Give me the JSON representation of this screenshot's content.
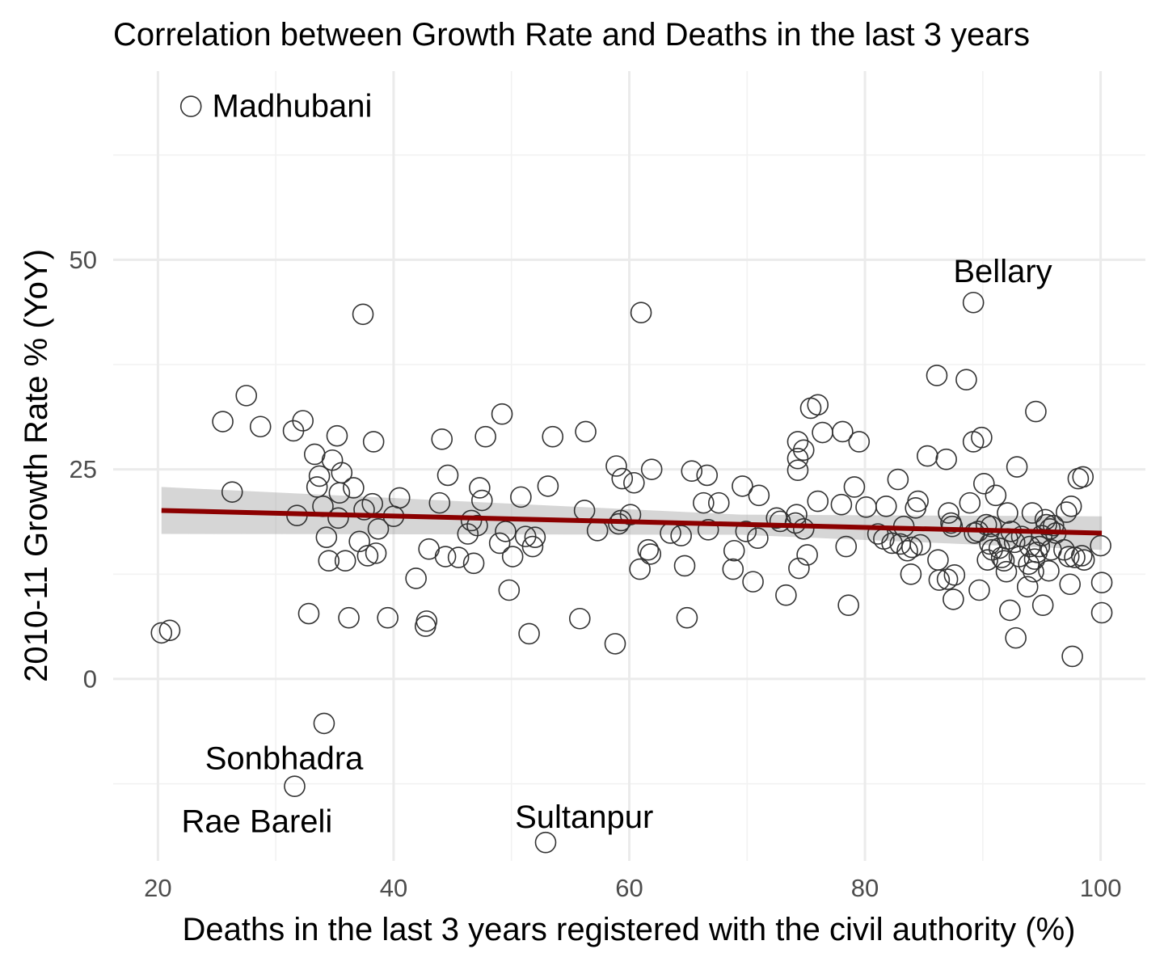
{
  "chart_data": {
    "type": "scatter",
    "title": "Correlation between Growth Rate and Deaths in the last 3 years",
    "xlabel": "Deaths in the last 3 years registered with the civil authority (%)",
    "ylabel": "2010-11 Growth Rate % (YoY)",
    "xlim": [
      16.2,
      103.8
    ],
    "ylim": [
      -21.7,
      72.5
    ],
    "x_ticks": [
      20,
      40,
      60,
      80,
      100
    ],
    "y_ticks": [
      0,
      25,
      50
    ],
    "grid": true,
    "points": [
      {
        "x": 22.8,
        "y": 68.3
      },
      {
        "x": 89.2,
        "y": 44.9
      },
      {
        "x": 37.4,
        "y": 43.5
      },
      {
        "x": 61.0,
        "y": 43.7
      },
      {
        "x": 20.3,
        "y": 5.5
      },
      {
        "x": 21.0,
        "y": 5.8
      },
      {
        "x": 25.5,
        "y": 30.7
      },
      {
        "x": 26.3,
        "y": 22.3
      },
      {
        "x": 27.5,
        "y": 33.8
      },
      {
        "x": 28.7,
        "y": 30.1
      },
      {
        "x": 31.5,
        "y": 29.6
      },
      {
        "x": 32.3,
        "y": 30.8
      },
      {
        "x": 31.8,
        "y": 19.5
      },
      {
        "x": 32.8,
        "y": 7.8
      },
      {
        "x": 33.3,
        "y": 26.8
      },
      {
        "x": 33.5,
        "y": 22.9
      },
      {
        "x": 33.7,
        "y": 24.2
      },
      {
        "x": 34.0,
        "y": 20.6
      },
      {
        "x": 34.3,
        "y": 16.9
      },
      {
        "x": 34.5,
        "y": 14.1
      },
      {
        "x": 34.8,
        "y": 26.1
      },
      {
        "x": 35.2,
        "y": 29.0
      },
      {
        "x": 35.4,
        "y": 22.2
      },
      {
        "x": 35.6,
        "y": 24.6
      },
      {
        "x": 35.3,
        "y": 19.2
      },
      {
        "x": 35.9,
        "y": 14.1
      },
      {
        "x": 36.2,
        "y": 7.3
      },
      {
        "x": 36.6,
        "y": 22.8
      },
      {
        "x": 37.1,
        "y": 16.4
      },
      {
        "x": 37.5,
        "y": 20.2
      },
      {
        "x": 37.8,
        "y": 14.7
      },
      {
        "x": 38.2,
        "y": 20.9
      },
      {
        "x": 38.5,
        "y": 15.0
      },
      {
        "x": 38.3,
        "y": 28.3
      },
      {
        "x": 38.7,
        "y": 17.9
      },
      {
        "x": 39.5,
        "y": 7.3
      },
      {
        "x": 40.0,
        "y": 19.4
      },
      {
        "x": 40.5,
        "y": 21.6
      },
      {
        "x": 41.9,
        "y": 12.0
      },
      {
        "x": 42.7,
        "y": 6.3
      },
      {
        "x": 42.8,
        "y": 6.9
      },
      {
        "x": 43.0,
        "y": 15.5
      },
      {
        "x": 43.9,
        "y": 21.0
      },
      {
        "x": 44.1,
        "y": 28.6
      },
      {
        "x": 44.4,
        "y": 14.6
      },
      {
        "x": 44.6,
        "y": 24.3
      },
      {
        "x": 45.5,
        "y": 14.5
      },
      {
        "x": 46.3,
        "y": 17.3
      },
      {
        "x": 46.6,
        "y": 18.9
      },
      {
        "x": 46.8,
        "y": 13.8
      },
      {
        "x": 47.1,
        "y": 18.3
      },
      {
        "x": 47.3,
        "y": 22.8
      },
      {
        "x": 47.5,
        "y": 21.3
      },
      {
        "x": 47.8,
        "y": 28.9
      },
      {
        "x": 49.0,
        "y": 16.2
      },
      {
        "x": 49.2,
        "y": 31.6
      },
      {
        "x": 49.5,
        "y": 17.6
      },
      {
        "x": 49.8,
        "y": 10.6
      },
      {
        "x": 50.1,
        "y": 14.6
      },
      {
        "x": 50.8,
        "y": 21.7
      },
      {
        "x": 51.2,
        "y": 17.0
      },
      {
        "x": 51.5,
        "y": 5.4
      },
      {
        "x": 51.8,
        "y": 15.8
      },
      {
        "x": 52.0,
        "y": 16.9
      },
      {
        "x": 52.9,
        "y": -19.5
      },
      {
        "x": 53.1,
        "y": 23.0
      },
      {
        "x": 53.5,
        "y": 28.9
      },
      {
        "x": 55.8,
        "y": 7.2
      },
      {
        "x": 56.2,
        "y": 20.1
      },
      {
        "x": 56.3,
        "y": 29.5
      },
      {
        "x": 57.3,
        "y": 17.7
      },
      {
        "x": 58.8,
        "y": 4.2
      },
      {
        "x": 58.9,
        "y": 25.4
      },
      {
        "x": 59.1,
        "y": 18.5
      },
      {
        "x": 59.3,
        "y": 18.9
      },
      {
        "x": 59.4,
        "y": 23.9
      },
      {
        "x": 60.1,
        "y": 19.6
      },
      {
        "x": 60.4,
        "y": 23.4
      },
      {
        "x": 60.9,
        "y": 13.1
      },
      {
        "x": 61.6,
        "y": 15.4
      },
      {
        "x": 61.9,
        "y": 25.0
      },
      {
        "x": 61.8,
        "y": 14.9
      },
      {
        "x": 63.5,
        "y": 17.4
      },
      {
        "x": 64.4,
        "y": 17.1
      },
      {
        "x": 64.7,
        "y": 13.5
      },
      {
        "x": 64.9,
        "y": 7.3
      },
      {
        "x": 65.3,
        "y": 24.8
      },
      {
        "x": 66.3,
        "y": 21.0
      },
      {
        "x": 66.6,
        "y": 24.3
      },
      {
        "x": 66.7,
        "y": 17.8
      },
      {
        "x": 67.6,
        "y": 21.0
      },
      {
        "x": 68.8,
        "y": 13.1
      },
      {
        "x": 68.9,
        "y": 15.3
      },
      {
        "x": 69.6,
        "y": 23.0
      },
      {
        "x": 69.9,
        "y": 17.6
      },
      {
        "x": 70.5,
        "y": 11.6
      },
      {
        "x": 70.9,
        "y": 16.8
      },
      {
        "x": 71.0,
        "y": 21.9
      },
      {
        "x": 72.5,
        "y": 19.2
      },
      {
        "x": 72.8,
        "y": 18.8
      },
      {
        "x": 73.3,
        "y": 10.0
      },
      {
        "x": 74.1,
        "y": 18.6
      },
      {
        "x": 74.2,
        "y": 19.6
      },
      {
        "x": 74.3,
        "y": 28.3
      },
      {
        "x": 74.3,
        "y": 26.3
      },
      {
        "x": 74.3,
        "y": 24.9
      },
      {
        "x": 74.4,
        "y": 13.2
      },
      {
        "x": 74.8,
        "y": 27.3
      },
      {
        "x": 74.8,
        "y": 17.9
      },
      {
        "x": 75.1,
        "y": 14.8
      },
      {
        "x": 75.4,
        "y": 32.3
      },
      {
        "x": 76.0,
        "y": 32.7
      },
      {
        "x": 76.0,
        "y": 21.2
      },
      {
        "x": 76.4,
        "y": 29.4
      },
      {
        "x": 78.0,
        "y": 20.8
      },
      {
        "x": 78.1,
        "y": 29.5
      },
      {
        "x": 78.4,
        "y": 15.8
      },
      {
        "x": 78.6,
        "y": 8.8
      },
      {
        "x": 79.1,
        "y": 22.9
      },
      {
        "x": 79.5,
        "y": 28.3
      },
      {
        "x": 80.1,
        "y": 20.5
      },
      {
        "x": 81.1,
        "y": 17.3
      },
      {
        "x": 81.6,
        "y": 16.7
      },
      {
        "x": 81.8,
        "y": 20.6
      },
      {
        "x": 82.3,
        "y": 16.2
      },
      {
        "x": 82.8,
        "y": 23.8
      },
      {
        "x": 83.0,
        "y": 16.1
      },
      {
        "x": 83.3,
        "y": 18.2
      },
      {
        "x": 83.6,
        "y": 15.3
      },
      {
        "x": 83.9,
        "y": 12.5
      },
      {
        "x": 84.0,
        "y": 15.7
      },
      {
        "x": 84.3,
        "y": 20.4
      },
      {
        "x": 84.5,
        "y": 21.2
      },
      {
        "x": 84.7,
        "y": 16.0
      },
      {
        "x": 85.3,
        "y": 26.6
      },
      {
        "x": 86.1,
        "y": 36.2
      },
      {
        "x": 86.2,
        "y": 14.2
      },
      {
        "x": 86.3,
        "y": 11.8
      },
      {
        "x": 86.9,
        "y": 26.2
      },
      {
        "x": 87.0,
        "y": 11.9
      },
      {
        "x": 87.1,
        "y": 19.8
      },
      {
        "x": 87.3,
        "y": 18.6
      },
      {
        "x": 87.4,
        "y": 18.2
      },
      {
        "x": 87.5,
        "y": 9.5
      },
      {
        "x": 87.6,
        "y": 12.4
      },
      {
        "x": 88.6,
        "y": 35.7
      },
      {
        "x": 88.9,
        "y": 21.0
      },
      {
        "x": 89.2,
        "y": 28.3
      },
      {
        "x": 89.3,
        "y": 17.4
      },
      {
        "x": 89.6,
        "y": 17.6
      },
      {
        "x": 89.7,
        "y": 10.6
      },
      {
        "x": 89.9,
        "y": 28.8
      },
      {
        "x": 90.1,
        "y": 23.3
      },
      {
        "x": 90.3,
        "y": 18.4
      },
      {
        "x": 90.4,
        "y": 14.2
      },
      {
        "x": 90.6,
        "y": 16.1
      },
      {
        "x": 90.7,
        "y": 18.2
      },
      {
        "x": 90.8,
        "y": 15.4
      },
      {
        "x": 91.1,
        "y": 21.9
      },
      {
        "x": 91.4,
        "y": 15.6
      },
      {
        "x": 91.6,
        "y": 14.5
      },
      {
        "x": 91.8,
        "y": 14.1
      },
      {
        "x": 92.0,
        "y": 12.8
      },
      {
        "x": 92.1,
        "y": 19.8
      },
      {
        "x": 92.1,
        "y": 16.7
      },
      {
        "x": 92.3,
        "y": 8.2
      },
      {
        "x": 92.4,
        "y": 17.6
      },
      {
        "x": 92.7,
        "y": 16.3
      },
      {
        "x": 92.8,
        "y": 4.9
      },
      {
        "x": 92.9,
        "y": 25.3
      },
      {
        "x": 93.1,
        "y": 14.6
      },
      {
        "x": 93.3,
        "y": 17.0
      },
      {
        "x": 93.8,
        "y": 11.0
      },
      {
        "x": 93.9,
        "y": 13.7
      },
      {
        "x": 94.0,
        "y": 15.8
      },
      {
        "x": 94.2,
        "y": 19.8
      },
      {
        "x": 94.3,
        "y": 12.8
      },
      {
        "x": 94.4,
        "y": 14.3
      },
      {
        "x": 94.5,
        "y": 31.9
      },
      {
        "x": 94.6,
        "y": 15.1
      },
      {
        "x": 94.8,
        "y": 15.8
      },
      {
        "x": 95.0,
        "y": 17.1
      },
      {
        "x": 95.1,
        "y": 8.8
      },
      {
        "x": 95.3,
        "y": 19.0
      },
      {
        "x": 95.4,
        "y": 18.4
      },
      {
        "x": 95.6,
        "y": 12.9
      },
      {
        "x": 95.7,
        "y": 17.9
      },
      {
        "x": 95.8,
        "y": 15.4
      },
      {
        "x": 96.0,
        "y": 18.3
      },
      {
        "x": 96.2,
        "y": 17.4
      },
      {
        "x": 96.9,
        "y": 15.4
      },
      {
        "x": 97.1,
        "y": 19.9
      },
      {
        "x": 97.3,
        "y": 14.6
      },
      {
        "x": 97.4,
        "y": 11.3
      },
      {
        "x": 97.5,
        "y": 20.6
      },
      {
        "x": 97.6,
        "y": 2.7
      },
      {
        "x": 97.8,
        "y": 14.5
      },
      {
        "x": 98.1,
        "y": 23.9
      },
      {
        "x": 98.4,
        "y": 14.7
      },
      {
        "x": 98.5,
        "y": 24.1
      },
      {
        "x": 98.6,
        "y": 14.2
      },
      {
        "x": 100.0,
        "y": 15.9
      },
      {
        "x": 100.1,
        "y": 11.5
      },
      {
        "x": 100.1,
        "y": 7.9
      },
      {
        "x": 34.1,
        "y": -5.3
      },
      {
        "x": 31.6,
        "y": -12.8
      }
    ],
    "trend_line": {
      "x": [
        20.3,
        100.1
      ],
      "y": [
        20.1,
        17.4
      ]
    },
    "confidence_band": {
      "x": [
        20.3,
        100.1
      ],
      "upper": [
        22.9,
        19.4
      ],
      "lower": [
        17.3,
        15.4
      ],
      "center_x": 69.5,
      "center_y": 18.4,
      "center_half": 1.2
    },
    "annotations": [
      {
        "text": "Madhubani",
        "x": 24.6,
        "y": 68.3,
        "anchor": "start"
      },
      {
        "text": "Bellary",
        "x": 87.5,
        "y": 48.6,
        "anchor": "start"
      },
      {
        "text": "Sonbhadra",
        "x": 24.0,
        "y": -9.5,
        "anchor": "start"
      },
      {
        "text": "Rae Bareli",
        "x": 22.0,
        "y": -17.0,
        "anchor": "start"
      },
      {
        "text": "Sultanpur",
        "x": 50.3,
        "y": -16.5,
        "anchor": "start"
      }
    ]
  },
  "colors": {
    "trend": "#8b0000",
    "band": "#999999",
    "point_stroke": "#333333",
    "grid": "#ebebeb"
  }
}
